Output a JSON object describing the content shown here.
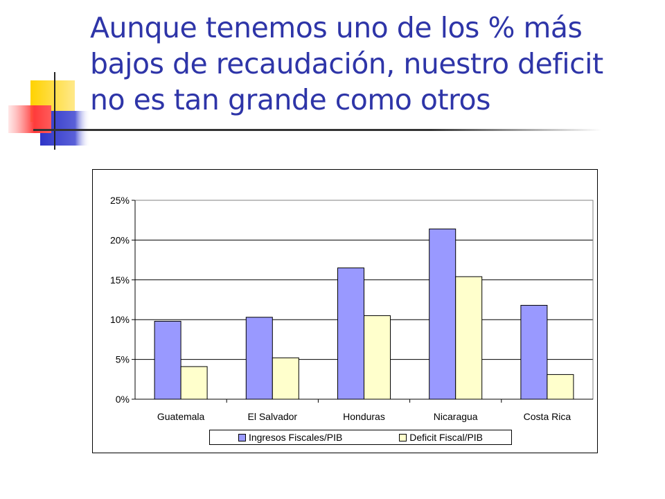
{
  "slide": {
    "title_lines": [
      "Aunque tenemos uno de los % más",
      "bajos de recaudación, nuestro deficit",
      "no es tan grande como otros"
    ]
  },
  "chart_data": {
    "type": "bar",
    "title": "",
    "xlabel": "",
    "ylabel": "",
    "categories": [
      "Guatemala",
      "El Salvador",
      "Honduras",
      "Nicaragua",
      "Costa Rica"
    ],
    "series": [
      {
        "name": "Ingresos Fiscales/PIB",
        "values": [
          9.8,
          10.3,
          16.5,
          21.4,
          11.8
        ],
        "color": "#9999ff"
      },
      {
        "name": "Deficit Fiscal/PIB",
        "values": [
          4.1,
          5.2,
          10.5,
          15.4,
          3.1
        ],
        "color": "#ffffcc"
      }
    ],
    "yticks": [
      "0%",
      "5%",
      "10%",
      "15%",
      "20%",
      "25%"
    ],
    "ylim": [
      0,
      25
    ],
    "grid": true,
    "legend_position": "bottom"
  },
  "colors": {
    "title": "#2e35a8",
    "series_1": "#9999ff",
    "series_2": "#ffffcc"
  }
}
